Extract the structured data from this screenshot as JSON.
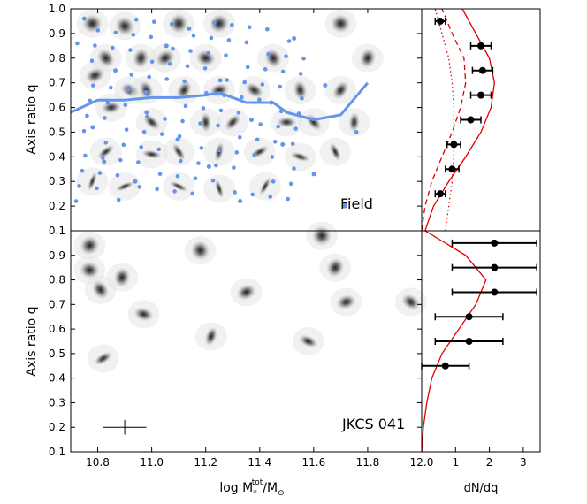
{
  "chart_data": [
    {
      "type": "scatter",
      "panel": "field",
      "label": "Field",
      "ylabel": "Axis ratio q",
      "xlim": [
        10.7,
        12.0
      ],
      "ylim": [
        0.1,
        1.0
      ],
      "yticks": [
        "0.1",
        "0.2",
        "0.3",
        "0.4",
        "0.5",
        "0.6",
        "0.7",
        "0.8",
        "0.9",
        "1.0"
      ],
      "point_color": "#6495ED",
      "trend_line": {
        "x": [
          10.7,
          10.8,
          10.9,
          11.0,
          11.1,
          11.2,
          11.25,
          11.35,
          11.45,
          11.5,
          11.6,
          11.7,
          11.8
        ],
        "q": [
          0.58,
          0.63,
          0.63,
          0.64,
          0.64,
          0.65,
          0.66,
          0.62,
          0.62,
          0.58,
          0.55,
          0.57,
          0.7
        ]
      },
      "galaxies": [
        {
          "x": 10.78,
          "q": 0.94
        },
        {
          "x": 10.9,
          "q": 0.93
        },
        {
          "x": 11.1,
          "q": 0.94
        },
        {
          "x": 11.25,
          "q": 0.94
        },
        {
          "x": 11.7,
          "q": 0.94
        },
        {
          "x": 10.83,
          "q": 0.8
        },
        {
          "x": 10.96,
          "q": 0.8
        },
        {
          "x": 11.05,
          "q": 0.8
        },
        {
          "x": 11.2,
          "q": 0.8
        },
        {
          "x": 11.45,
          "q": 0.8
        },
        {
          "x": 11.8,
          "q": 0.8
        },
        {
          "x": 10.79,
          "q": 0.73
        },
        {
          "x": 10.92,
          "q": 0.67
        },
        {
          "x": 10.98,
          "q": 0.67
        },
        {
          "x": 11.12,
          "q": 0.67
        },
        {
          "x": 11.25,
          "q": 0.67
        },
        {
          "x": 11.38,
          "q": 0.67
        },
        {
          "x": 11.55,
          "q": 0.67
        },
        {
          "x": 11.7,
          "q": 0.67
        },
        {
          "x": 10.85,
          "q": 0.6
        },
        {
          "x": 11.0,
          "q": 0.54
        },
        {
          "x": 11.2,
          "q": 0.54
        },
        {
          "x": 11.3,
          "q": 0.54
        },
        {
          "x": 11.5,
          "q": 0.54
        },
        {
          "x": 11.6,
          "q": 0.54
        },
        {
          "x": 11.75,
          "q": 0.54
        },
        {
          "x": 10.83,
          "q": 0.42
        },
        {
          "x": 11.0,
          "q": 0.41
        },
        {
          "x": 11.1,
          "q": 0.42
        },
        {
          "x": 11.25,
          "q": 0.42
        },
        {
          "x": 11.4,
          "q": 0.42
        },
        {
          "x": 11.55,
          "q": 0.4
        },
        {
          "x": 11.68,
          "q": 0.42
        },
        {
          "x": 10.78,
          "q": 0.3
        },
        {
          "x": 10.9,
          "q": 0.28
        },
        {
          "x": 11.1,
          "q": 0.28
        },
        {
          "x": 11.25,
          "q": 0.27
        },
        {
          "x": 11.42,
          "q": 0.28
        }
      ],
      "points_q": [
        0.96,
        0.92,
        0.88,
        0.75,
        0.71,
        0.69,
        0.58,
        0.55,
        0.5,
        0.47,
        0.45,
        0.38,
        0.36,
        0.33,
        0.3,
        0.22,
        0.2,
        0.85,
        0.62,
        0.52
      ]
    },
    {
      "type": "scatter",
      "panel": "cluster",
      "label": "JKCS 041",
      "ylabel": "Axis ratio q",
      "xlabel_main": "log M",
      "xlabel_sup": "tot",
      "xlabel_sub": "*",
      "xlabel_tail": "/M",
      "xlabel_tail_sub": "⊙",
      "xlim": [
        10.7,
        12.0
      ],
      "ylim": [
        0.1,
        1.0
      ],
      "xticks": [
        "10.8",
        "11.0",
        "11.2",
        "11.4",
        "11.6",
        "11.8",
        "12.0"
      ],
      "yticks": [
        "0.1",
        "0.2",
        "0.3",
        "0.4",
        "0.5",
        "0.6",
        "0.7",
        "0.8",
        "0.9"
      ],
      "galaxies": [
        {
          "x": 10.77,
          "q": 0.94
        },
        {
          "x": 10.77,
          "q": 0.84
        },
        {
          "x": 10.81,
          "q": 0.76
        },
        {
          "x": 10.89,
          "q": 0.81
        },
        {
          "x": 10.82,
          "q": 0.48
        },
        {
          "x": 10.97,
          "q": 0.66
        },
        {
          "x": 11.18,
          "q": 0.92
        },
        {
          "x": 11.22,
          "q": 0.57
        },
        {
          "x": 11.35,
          "q": 0.75
        },
        {
          "x": 11.58,
          "q": 0.55
        },
        {
          "x": 11.63,
          "q": 0.98
        },
        {
          "x": 11.68,
          "q": 0.85
        },
        {
          "x": 11.72,
          "q": 0.71
        },
        {
          "x": 11.96,
          "q": 0.71
        }
      ],
      "error_cross": {
        "x": 10.9,
        "q": 0.2,
        "dx": 0.08,
        "dq": 0.03
      }
    },
    {
      "type": "line",
      "panel": "field-distribution",
      "xlabel": "dN/dq",
      "xlim": [
        0,
        3.5
      ],
      "points": [
        {
          "q": 0.95,
          "dn": 0.55,
          "err": 0.15
        },
        {
          "q": 0.85,
          "dn": 1.75,
          "err": 0.3
        },
        {
          "q": 0.75,
          "dn": 1.8,
          "err": 0.3
        },
        {
          "q": 0.65,
          "dn": 1.75,
          "err": 0.3
        },
        {
          "q": 0.55,
          "dn": 1.45,
          "err": 0.3
        },
        {
          "q": 0.45,
          "dn": 0.95,
          "err": 0.2
        },
        {
          "q": 0.35,
          "dn": 0.9,
          "err": 0.2
        },
        {
          "q": 0.25,
          "dn": 0.55,
          "err": 0.15
        }
      ],
      "model_total": [
        [
          0.1,
          0.1
        ],
        [
          0.2,
          0.35
        ],
        [
          0.3,
          0.8
        ],
        [
          0.4,
          1.3
        ],
        [
          0.5,
          1.75
        ],
        [
          0.6,
          2.05
        ],
        [
          0.7,
          2.15
        ],
        [
          0.8,
          2.0
        ],
        [
          0.9,
          1.6
        ],
        [
          1.0,
          1.2
        ]
      ],
      "model_dashed": [
        [
          0.1,
          0.0
        ],
        [
          0.2,
          0.1
        ],
        [
          0.3,
          0.3
        ],
        [
          0.4,
          0.6
        ],
        [
          0.5,
          0.9
        ],
        [
          0.6,
          1.15
        ],
        [
          0.7,
          1.3
        ],
        [
          0.8,
          1.25
        ],
        [
          0.9,
          0.9
        ],
        [
          1.0,
          0.6
        ]
      ],
      "model_dotted": [
        [
          0.1,
          0.7
        ],
        [
          0.2,
          0.8
        ],
        [
          0.3,
          0.9
        ],
        [
          0.4,
          0.95
        ],
        [
          0.5,
          0.95
        ],
        [
          0.6,
          0.95
        ],
        [
          0.7,
          0.9
        ],
        [
          0.8,
          0.8
        ],
        [
          0.9,
          0.6
        ],
        [
          1.0,
          0.4
        ]
      ],
      "model_color": "#e00000"
    },
    {
      "type": "line",
      "panel": "cluster-distribution",
      "xlabel": "dN/dq",
      "xlim": [
        0,
        3.5
      ],
      "xticks": [
        "0",
        "1",
        "2",
        "3"
      ],
      "points": [
        {
          "q": 0.95,
          "dn": 2.15,
          "err": 1.25
        },
        {
          "q": 0.85,
          "dn": 2.15,
          "err": 1.25
        },
        {
          "q": 0.75,
          "dn": 2.15,
          "err": 1.25
        },
        {
          "q": 0.65,
          "dn": 1.4,
          "err": 1.0
        },
        {
          "q": 0.55,
          "dn": 1.4,
          "err": 1.0
        },
        {
          "q": 0.45,
          "dn": 0.7,
          "err": 0.7
        }
      ],
      "model_total": [
        [
          0.1,
          0.0
        ],
        [
          0.2,
          0.05
        ],
        [
          0.3,
          0.15
        ],
        [
          0.4,
          0.3
        ],
        [
          0.5,
          0.6
        ],
        [
          0.6,
          1.1
        ],
        [
          0.7,
          1.6
        ],
        [
          0.8,
          1.9
        ],
        [
          0.9,
          1.3
        ],
        [
          1.0,
          0.1
        ]
      ],
      "model_color": "#e00000"
    }
  ]
}
